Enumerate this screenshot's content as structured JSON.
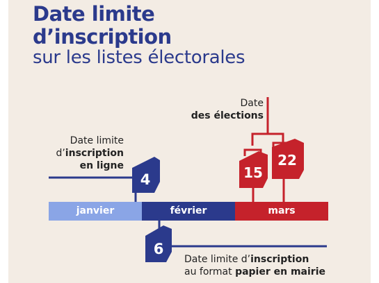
{
  "title_line1": "Date limite",
  "title_line2": "d’inscription",
  "subtitle": "sur les listes électorales",
  "election": {
    "line1": "Date",
    "line2": "des élections"
  },
  "online": {
    "line1": "Date limite",
    "line2_pre": "d’",
    "line2_bold": "inscription",
    "line3": "en ligne"
  },
  "paper": {
    "line1_pre": "Date limite d’",
    "line1_bold": "inscription",
    "line2_pre": "au format ",
    "line2_bold": "papier en mairie"
  },
  "months": [
    "janvier",
    "février",
    "mars"
  ],
  "dates": {
    "online": "4",
    "paper": "6",
    "election_first": "15",
    "election_second": "22"
  },
  "colors": {
    "blue": "#2b3a8c",
    "light_blue": "#8aa5e6",
    "red": "#c5222b",
    "background": "#f3ece4"
  }
}
